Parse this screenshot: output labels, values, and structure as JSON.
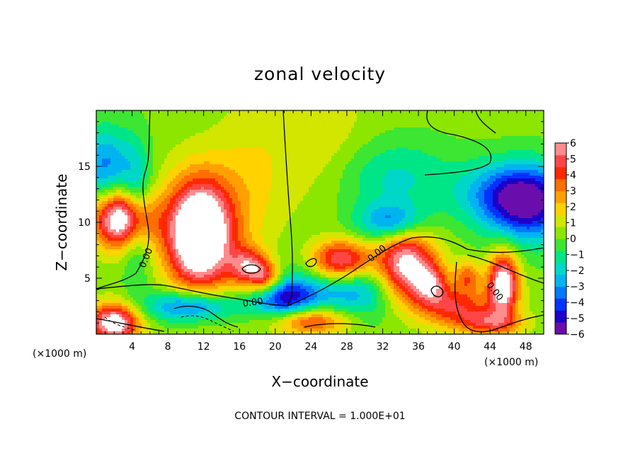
{
  "chart_data": {
    "type": "heatmap",
    "title": "zonal velocity",
    "xlabel": "X−coordinate",
    "ylabel": "Z−coordinate",
    "x_unit": "(×1000 m)",
    "z_unit": "(×1000 m)",
    "footer": "CONTOUR INTERVAL = 1.000E+01",
    "xlim": [
      0,
      50
    ],
    "ylim": [
      0,
      20
    ],
    "x_ticks": [
      4,
      8,
      12,
      16,
      20,
      24,
      28,
      32,
      36,
      40,
      44,
      48
    ],
    "y_ticks": [
      5,
      10,
      15
    ],
    "colorbar": {
      "min": -6,
      "max": 6,
      "ticks": [
        6,
        5,
        4,
        3,
        2,
        1,
        0,
        -1,
        -2,
        -3,
        -4,
        -5,
        -6
      ],
      "colors": [
        "#6a0dad",
        "#1e00c8",
        "#0032ff",
        "#0078ff",
        "#00b4f0",
        "#00d7c8",
        "#00e687",
        "#3ce632",
        "#8ce600",
        "#d2e600",
        "#ffd200",
        "#ffa000",
        "#ff6e00",
        "#ff2800",
        "#ff4646",
        "#ff8c8c"
      ],
      "above_max_color": "#ffffff"
    },
    "contour_labels": [
      {
        "text": "0.00",
        "x": 5.6,
        "z": 6.8,
        "rot": -68
      },
      {
        "text": "0.00",
        "x": 17.5,
        "z": 2.8,
        "rot": -8
      },
      {
        "text": "0.00",
        "x": 31.4,
        "z": 7.2,
        "rot": -40
      },
      {
        "text": "0.00",
        "x": 44.5,
        "z": 3.8,
        "rot": 52
      }
    ],
    "features": [
      {
        "x": 11.5,
        "z": 9.0,
        "sx": 2.6,
        "sz": 3.4,
        "a": 9.5
      },
      {
        "x": 17.0,
        "z": 6.0,
        "sx": 1.5,
        "sz": 1.2,
        "a": 4.5
      },
      {
        "x": 19.0,
        "z": 5.0,
        "sx": 1.2,
        "sz": 1.0,
        "a": 4.0
      },
      {
        "x": 3.0,
        "z": 10.3,
        "sx": 2.3,
        "sz": 1.8,
        "a": 8.0
      },
      {
        "x": 1.0,
        "z": 15.0,
        "sx": 2.0,
        "sz": 2.5,
        "a": -3.5
      },
      {
        "x": 4.5,
        "z": 11.0,
        "sx": 1.2,
        "sz": 4.0,
        "a": -3.0
      },
      {
        "x": 27.5,
        "z": 6.5,
        "sx": 2.6,
        "sz": 1.4,
        "a": 8.0
      },
      {
        "x": 34.5,
        "z": 6.0,
        "sx": 2.4,
        "sz": 2.2,
        "a": 8.0
      },
      {
        "x": 37.5,
        "z": 4.5,
        "sx": 1.3,
        "sz": 1.2,
        "a": 3.5
      },
      {
        "x": 45.5,
        "z": 4.5,
        "sx": 1.2,
        "sz": 2.0,
        "a": 7.0
      },
      {
        "x": 41.5,
        "z": 5.2,
        "sx": 1.0,
        "sz": 1.0,
        "a": 3.0
      },
      {
        "x": 29.0,
        "z": 5.0,
        "sx": 4.5,
        "sz": 2.3,
        "a": -4.5
      },
      {
        "x": 21.0,
        "z": 3.2,
        "sx": 2.5,
        "sz": 1.3,
        "a": -5.0
      },
      {
        "x": 10.5,
        "z": 2.5,
        "sx": 3.5,
        "sz": 1.0,
        "a": -4.5
      },
      {
        "x": 33.0,
        "z": 10.0,
        "sx": 2.5,
        "sz": 1.2,
        "a": -3.5
      },
      {
        "x": 48.5,
        "z": 11.5,
        "sx": 3.5,
        "sz": 2.5,
        "a": -4.5
      },
      {
        "x": 46.0,
        "z": 12.5,
        "sx": 4.0,
        "sz": 2.0,
        "a": -3.0
      },
      {
        "x": 33.0,
        "z": 14.0,
        "sx": 5.0,
        "sz": 2.5,
        "a": -2.0
      },
      {
        "x": 40.0,
        "z": 2.5,
        "sx": 3.0,
        "sz": 1.3,
        "a": 4.0
      },
      {
        "x": 24.0,
        "z": 1.2,
        "sx": 3.0,
        "sz": 0.9,
        "a": 4.5
      },
      {
        "x": 2.0,
        "z": 1.0,
        "sx": 2.0,
        "sz": 1.2,
        "a": 7.0
      },
      {
        "x": 44.0,
        "z": 1.0,
        "sx": 2.5,
        "sz": 0.8,
        "a": 3.5
      },
      {
        "x": 25.0,
        "z": 17.0,
        "sx": 4.0,
        "sz": 4.0,
        "a": 1.2
      },
      {
        "x": 17.0,
        "z": 13.0,
        "sx": 3.0,
        "sz": 5.0,
        "a": 1.3
      }
    ]
  }
}
